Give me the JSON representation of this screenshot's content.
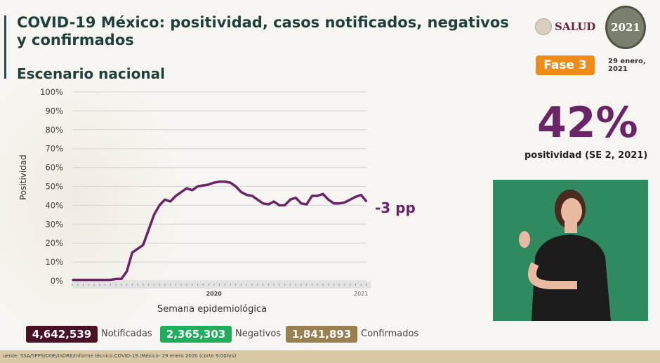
{
  "header": {
    "title": "COVID-19 México: positividad, casos notificados, negativos y confirmados",
    "subtitle": "Escenario nacional"
  },
  "logos": {
    "salud": "SALUD",
    "year_logo": "2021"
  },
  "badge": {
    "phase": "Fase 3",
    "phase_color": "#ef8c17",
    "date": "29 enero, 2021"
  },
  "highlight": {
    "value": "42%",
    "label": "positividad (SE 2, 2021)",
    "color": "#6b2468"
  },
  "chart_data": {
    "type": "line",
    "xlabel": "Semana epidemiológica",
    "ylabel": "Positividad",
    "ylim": [
      0,
      100
    ],
    "yticks": [
      "0%",
      "10%",
      "20%",
      "30%",
      "40%",
      "50%",
      "60%",
      "70%",
      "80%",
      "90%",
      "100%"
    ],
    "year_labels": [
      "2020",
      "2021"
    ],
    "grid": true,
    "line_color": "#6b2468",
    "annotation": "-3 pp",
    "x": [
      "2020-1",
      "2020-2",
      "2020-3",
      "2020-4",
      "2020-5",
      "2020-6",
      "2020-7",
      "2020-8",
      "2020-9",
      "2020-10",
      "2020-11",
      "2020-12",
      "2020-13",
      "2020-14",
      "2020-15",
      "2020-16",
      "2020-17",
      "2020-18",
      "2020-19",
      "2020-20",
      "2020-21",
      "2020-22",
      "2020-23",
      "2020-24",
      "2020-25",
      "2020-26",
      "2020-27",
      "2020-28",
      "2020-29",
      "2020-30",
      "2020-31",
      "2020-32",
      "2020-33",
      "2020-34",
      "2020-35",
      "2020-36",
      "2020-37",
      "2020-38",
      "2020-39",
      "2020-40",
      "2020-41",
      "2020-42",
      "2020-43",
      "2020-44",
      "2020-45",
      "2020-46",
      "2020-47",
      "2020-48",
      "2020-49",
      "2020-50",
      "2020-51",
      "2020-52",
      "2020-53",
      "2021-1",
      "2021-2"
    ],
    "values": [
      0.5,
      0.5,
      0.5,
      0.5,
      0.5,
      0.5,
      0.5,
      0.5,
      1,
      1,
      5,
      15,
      17,
      19,
      27,
      35,
      40,
      43,
      42,
      45,
      47,
      49,
      48,
      50,
      50.5,
      51,
      52,
      52.5,
      52.5,
      52,
      50,
      47,
      45.5,
      45,
      43,
      41,
      40.5,
      42,
      40,
      40,
      43,
      44,
      41,
      40.5,
      45,
      45,
      46,
      43,
      41,
      41,
      41.5,
      43,
      44.5,
      45.5,
      42
    ]
  },
  "stats": [
    {
      "value": "4,642,539",
      "label": "Notificadas",
      "color": "#4a1126"
    },
    {
      "value": "2,365,303",
      "label": "Negativos",
      "color": "#1fae5c"
    },
    {
      "value": "1,841,893",
      "label": "Confirmados",
      "color": "#9a7f4f"
    }
  ],
  "footer": "uente: SSA/SPPS/DGE/InDRE/Informe técnico.COVID-19 /México- 29 enero 2020 (corte 9:00hrs)"
}
